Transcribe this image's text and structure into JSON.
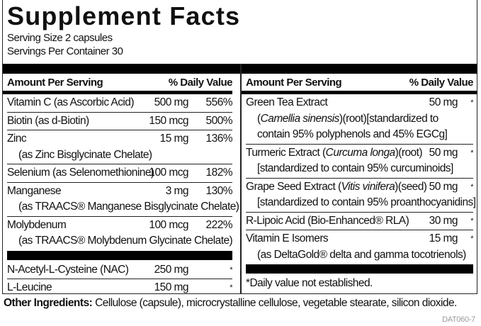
{
  "title": "Supplement Facts",
  "serving_size": "Serving Size 2 capsules",
  "servings_per_container": "Servings Per Container 30",
  "left_table": {
    "header_amount": "Amount Per Serving",
    "header_dv": "% Daily Value",
    "rows_a": [
      {
        "lines": [
          "Vitamin C (as Ascorbic Acid)"
        ],
        "amount": "500 mg",
        "dv": "556%"
      },
      {
        "lines": [
          "Biotin (as d-Biotin)"
        ],
        "amount": "150 mcg",
        "dv": "500%"
      },
      {
        "lines": [
          "Zinc",
          "(as Zinc Bisglycinate Chelate)"
        ],
        "amount": "15 mg",
        "dv": "136%"
      },
      {
        "lines": [
          "Selenium (as Selenomethionine)"
        ],
        "amount": "100 mcg",
        "dv": "182%"
      },
      {
        "lines": [
          "Manganese",
          "(as TRAACS® Manganese Bisglycinate Chelate)"
        ],
        "amount": "3 mg",
        "dv": "130%"
      },
      {
        "lines": [
          "Molybdenum",
          "(as TRAACS® Molybdenum Glycinate Chelate)"
        ],
        "amount": "100 mcg",
        "dv": "222%"
      }
    ],
    "rows_b": [
      {
        "lines": [
          "N-Acetyl-L-Cysteine (NAC)"
        ],
        "amount": "250 mg",
        "dv": "*"
      },
      {
        "lines": [
          "L-Leucine"
        ],
        "amount": "150 mg",
        "dv": "*"
      }
    ]
  },
  "right_table": {
    "header_amount": "Amount Per Serving",
    "header_dv": "% Daily Value",
    "rows": [
      {
        "lines": [
          "Green Tea Extract",
          "(Camellia sinensis)(root)[standardized to",
          "contain 95% polyphenols and 45% EGCg]"
        ],
        "italic": "Camellia sinensis",
        "amount": "50 mg",
        "dv": "*"
      },
      {
        "lines": [
          "Turmeric Extract (Curcuma longa)(root)",
          "[standardized to contain 95% curcuminoids]"
        ],
        "italic": "Curcuma longa",
        "amount": "50 mg",
        "dv": "*"
      },
      {
        "lines": [
          "Grape Seed Extract (Vitis vinifera)(seed)",
          "[standardized to contain 95% proanthocyanidins]"
        ],
        "italic": "Vitis vinifera",
        "amount": "50 mg",
        "dv": "*"
      },
      {
        "lines": [
          "R-Lipoic Acid (Bio-Enhanced® RLA)"
        ],
        "amount": "30 mg",
        "dv": "*"
      },
      {
        "lines": [
          "Vitamin E Isomers",
          "(as DeltaGold® delta and gamma tocotrienols)"
        ],
        "amount": "15 mg",
        "dv": "*"
      }
    ],
    "footnote": "*Daily value not established."
  },
  "other_ingredients": {
    "label": "Other Ingredients:",
    "text": " Cellulose (capsule), microcrystalline cellulose, vegetable stearate, silicon dioxide."
  },
  "product_code": "DAT060-7"
}
